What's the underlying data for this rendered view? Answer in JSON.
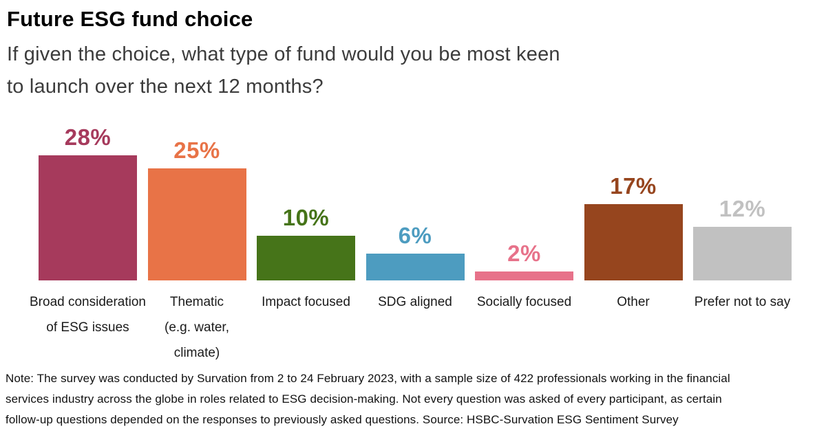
{
  "header": {
    "title": "Future ESG fund choice",
    "subtitle": "If given the choice, what type of fund would you be most keen\nto launch over the next 12 months?"
  },
  "chart_data": {
    "type": "bar",
    "title": "Future ESG fund choice",
    "subtitle": "If given the choice, what type of fund would you be most keen to launch over the next 12 months?",
    "unit": "%",
    "categories": [
      "Broad consideration\nof ESG issues",
      "Thematic\n(e.g. water,\nclimate)",
      "Impact focused",
      "SDG aligned",
      "Socially focused",
      "Other",
      "Prefer not to say"
    ],
    "values": [
      28,
      25,
      10,
      6,
      2,
      17,
      12
    ],
    "value_labels": [
      "28%",
      "25%",
      "10%",
      "6%",
      "2%",
      "17%",
      "12%"
    ],
    "colors": [
      "#a63a5c",
      "#e87347",
      "#467419",
      "#4d9cc0",
      "#e7728a",
      "#96451e",
      "#c1c1c1"
    ],
    "ylim": [
      0,
      30
    ],
    "grid": false,
    "legend_position": "none",
    "value_labels_position": "above-bar",
    "xlabel": "",
    "ylabel": ""
  },
  "footer": {
    "note": "Note: The survey was conducted by Survation from 2 to 24 February 2023, with a sample size of 422 professionals working in the financial\nservices industry across the globe in roles related to ESG decision-making. Not every question was asked of every participant, as certain\nfollow-up questions depended on the responses to previously asked questions. Source: HSBC-Survation ESG Sentiment Survey"
  }
}
